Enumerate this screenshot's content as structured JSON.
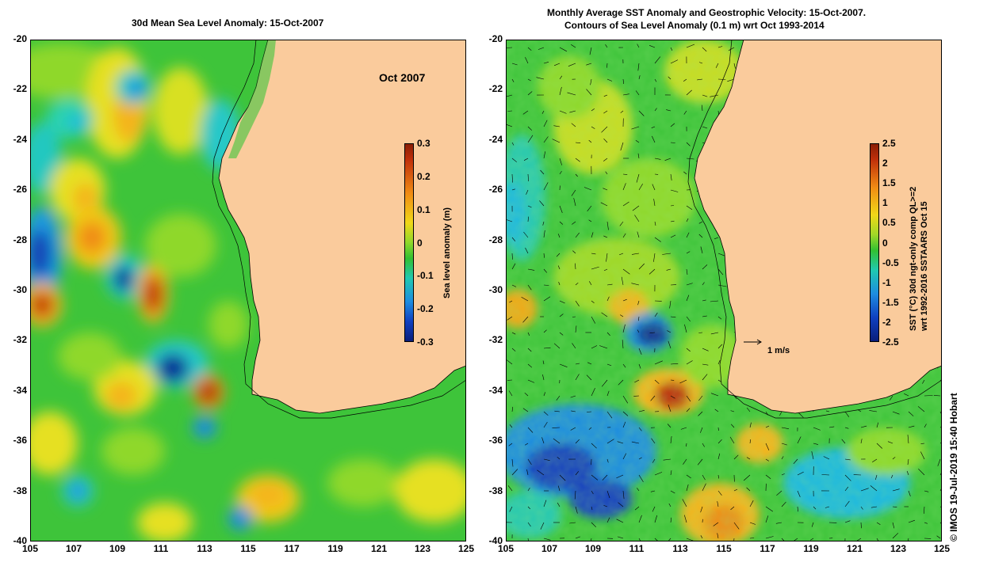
{
  "left": {
    "title": "30d Mean Sea Level Anomaly: 15-Oct-2007",
    "month_label": "Oct 2007",
    "colorbar": {
      "label": "Sea level anomaly (m)",
      "ticks": [
        "0.3",
        "0.2",
        "0.1",
        "0",
        "-0.1",
        "-0.2",
        "-0.3"
      ],
      "range": [
        -0.3,
        0.3
      ]
    }
  },
  "right": {
    "title_line1": "Monthly Average SST Anomaly  and Geostrophic Velocity: 15-Oct-2007.",
    "title_line2": "Contours of Sea Level Anomaly (0.1 m) wrt Oct 1993-2014",
    "colorbar": {
      "label_line1": "SST (°C) 30d ngt-only comp QL>=2",
      "label_line2": "wrt 1992-2016 SSTAARS Oct 15",
      "ticks": [
        "2.5",
        "2",
        "1.5",
        "1",
        "0.5",
        "0",
        "-0.5",
        "-1",
        "-1.5",
        "-2",
        "-2.5"
      ],
      "range": [
        -2.5,
        2.5
      ]
    },
    "velocity_scale_label": "1 m/s"
  },
  "axes": {
    "x_ticks": [
      "105",
      "107",
      "109",
      "111",
      "113",
      "115",
      "117",
      "119",
      "121",
      "123",
      "125"
    ],
    "y_ticks": [
      "-20",
      "-22",
      "-24",
      "-26",
      "-28",
      "-30",
      "-32",
      "-34",
      "-36",
      "-38",
      "-40"
    ],
    "x_range": [
      105,
      125
    ],
    "y_range": [
      -40,
      -20
    ]
  },
  "credit": "© IMOS 19-Jul-2019 15:40 Hobart",
  "colors": {
    "land": "#facb9c",
    "anom_high": "#c0300a",
    "anom_mid": "#32c032",
    "anom_low": "#0a2a96"
  }
}
